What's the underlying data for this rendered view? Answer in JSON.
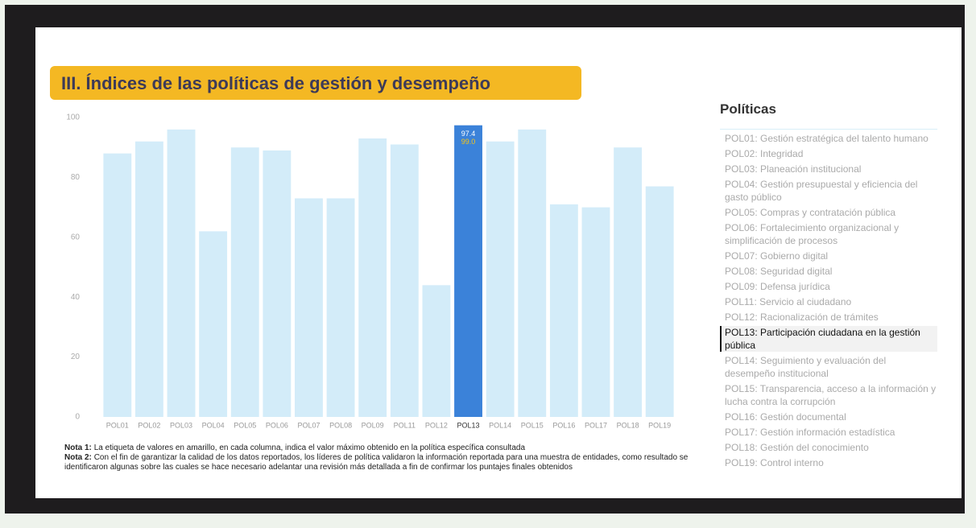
{
  "chart_data": {
    "type": "bar",
    "title": "III. Índices de las políticas de gestión y desempeño",
    "categories": [
      "POL01",
      "POL02",
      "POL03",
      "POL04",
      "POL05",
      "POL06",
      "POL07",
      "POL08",
      "POL09",
      "POL11",
      "POL12",
      "POL13",
      "POL14",
      "POL15",
      "POL16",
      "POL17",
      "POL18",
      "POL19"
    ],
    "values": [
      88,
      92,
      96,
      62,
      90,
      89,
      73,
      73,
      93,
      91,
      44,
      97.4,
      92,
      96,
      71,
      70,
      90,
      77
    ],
    "color": "#d3ecf9",
    "highlight_color": "#3b82d9",
    "selected": "POL13",
    "ylim": [
      0,
      100
    ],
    "yticks": [
      0,
      20,
      40,
      60,
      80,
      100
    ],
    "grid": false,
    "data_labels": [
      {
        "category": "POL13",
        "value": 97.4,
        "color": "#ffffff"
      },
      {
        "category": "POL13",
        "value": 99,
        "label": "99.0",
        "color": "#f5c518"
      }
    ],
    "notes": [
      {
        "label": "Nota 1:",
        "text": "La etiqueta de valores en amarillo, en cada columna, indica el valor máximo obtenido en la política específica consultada"
      },
      {
        "label": "Nota 2:",
        "text": "Con el fin de garantizar la calidad de los datos reportados, los líderes de política validaron la información reportada para una muestra de entidades, como resultado se identificaron algunas sobre las cuales se hace necesario adelantar una revisión más detallada a fin de confirmar los puntajes finales obtenidos"
      }
    ],
    "legend": {
      "title": "Políticas",
      "items": [
        "POL01: Gestión estratégica del talento humano",
        "POL02: Integridad",
        "POL03: Planeación institucional",
        "POL04: Gestión presupuestal y eficiencia del gasto público",
        "POL05: Compras y contratación pública",
        "POL06: Fortalecimiento organizacional y simplificación de procesos",
        "POL07: Gobierno digital",
        "POL08: Seguridad digital",
        "POL09: Defensa jurídica",
        "POL11: Servicio al ciudadano",
        "POL12: Racionalización de trámites",
        "POL13: Participación ciudadana en la gestión pública",
        "POL14: Seguimiento y evaluación del desempeño institucional",
        "POL15: Transparencia, acceso a la información y lucha contra la corrupción",
        "POL16: Gestión documental",
        "POL17: Gestión información estadística",
        "POL18: Gestión del conocimiento",
        "POL19: Control interno"
      ]
    }
  }
}
